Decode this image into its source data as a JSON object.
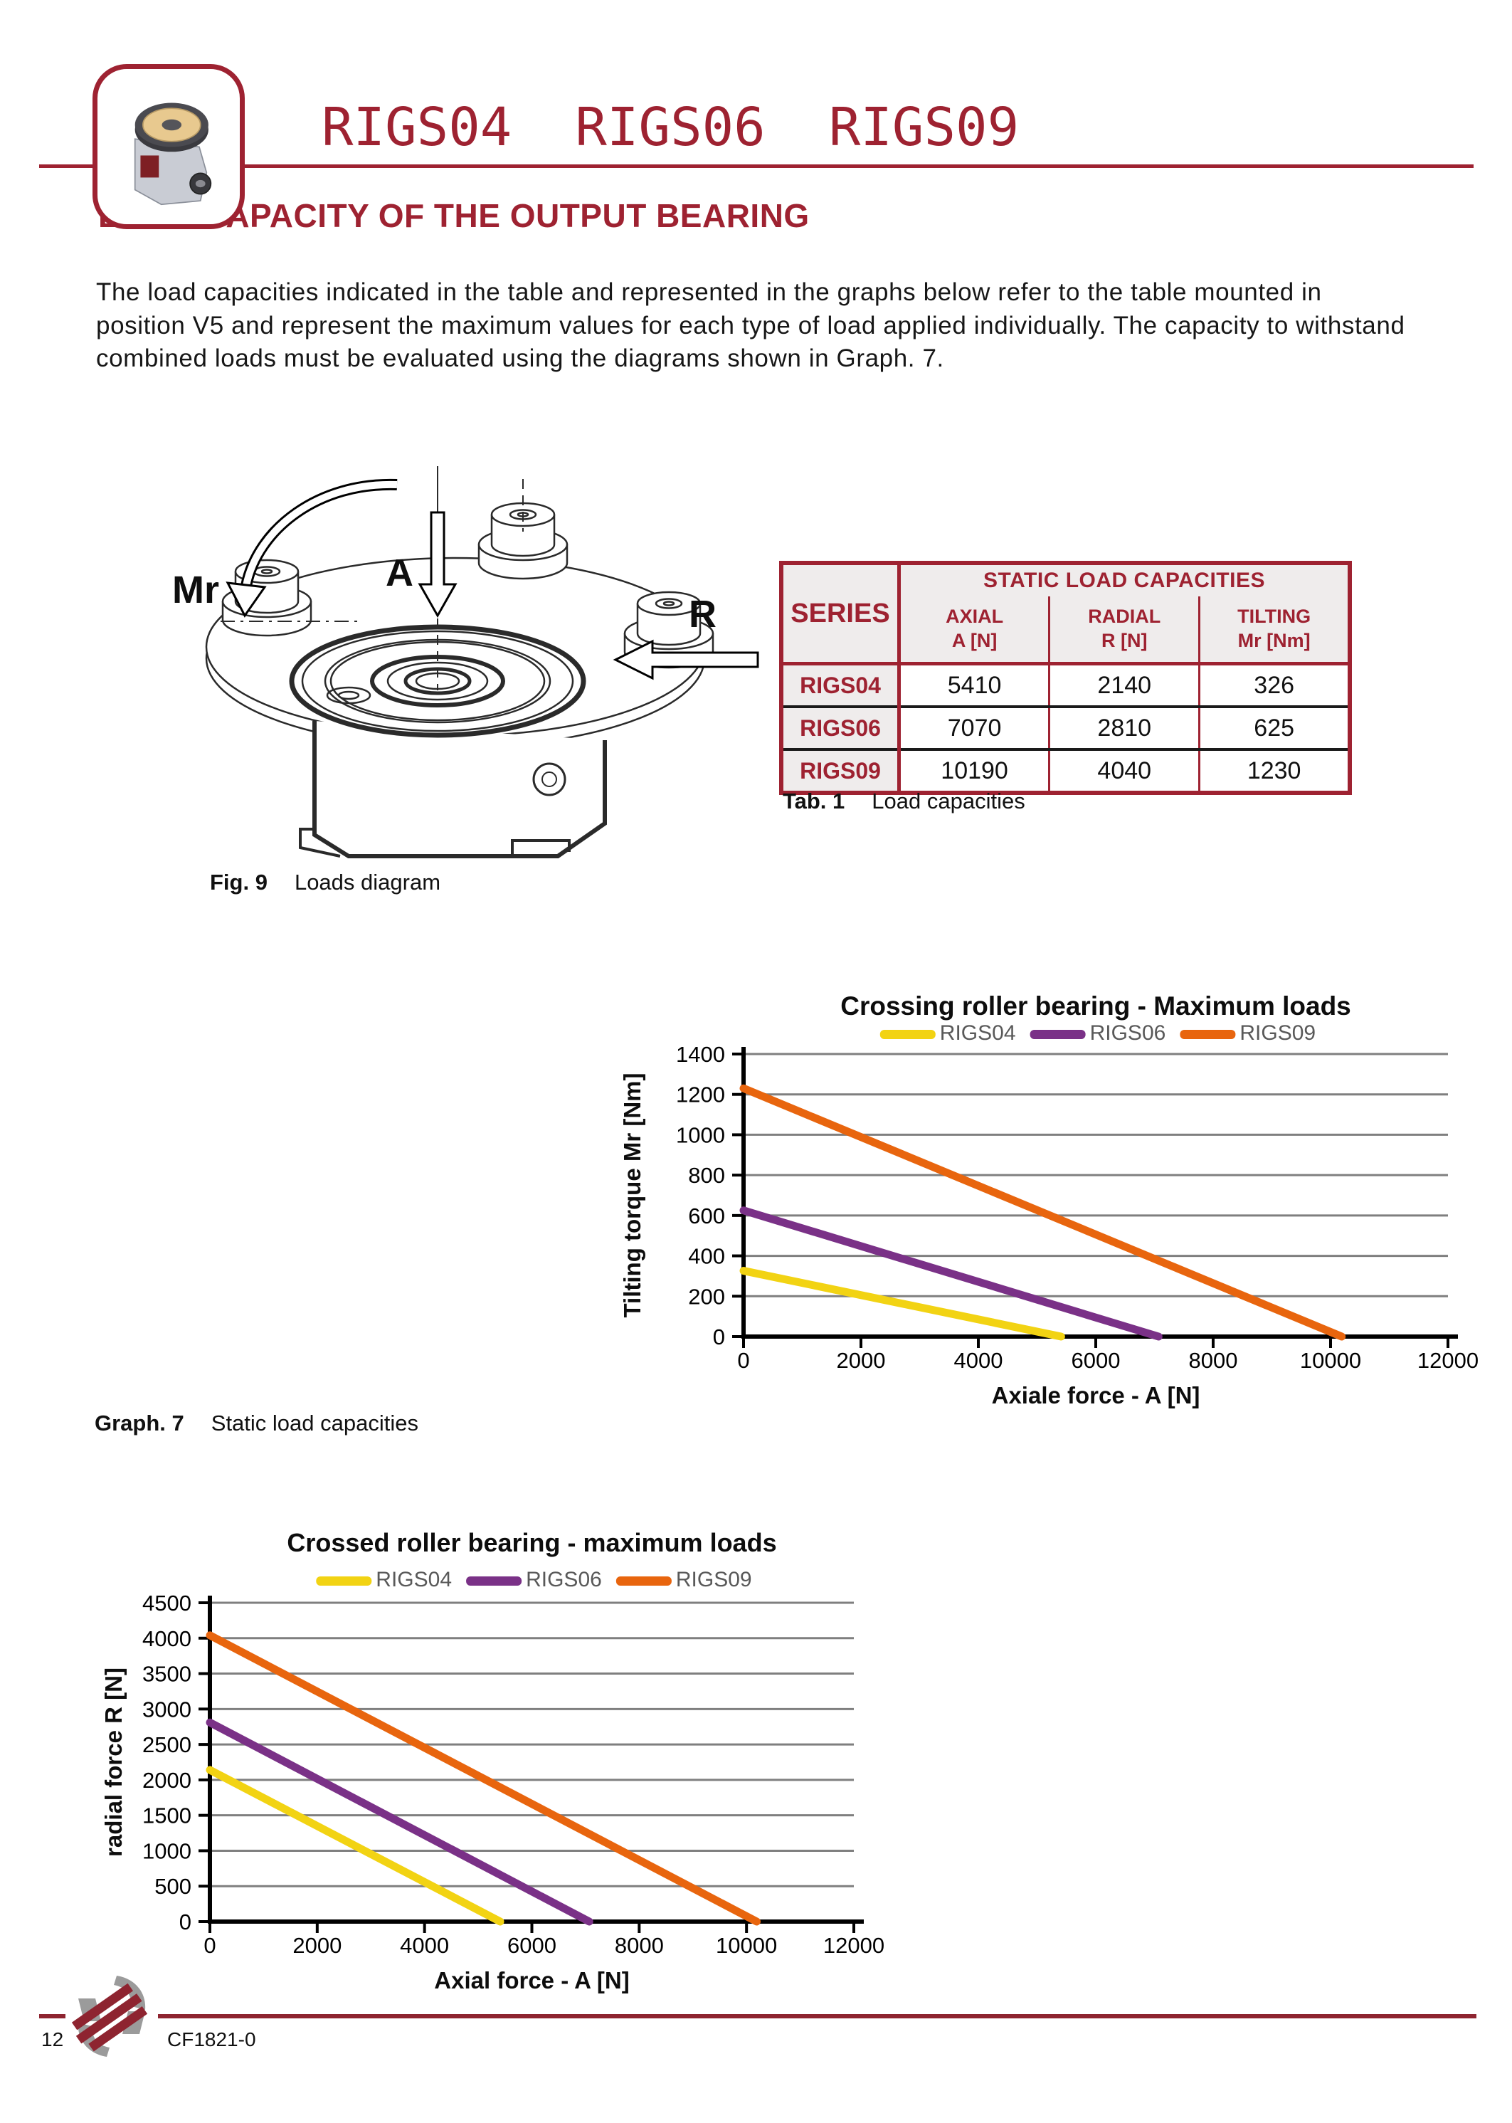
{
  "header": {
    "title": "RIGS04  RIGS06  RIGS09"
  },
  "section": {
    "heading": "LOAD CAPACITY OF THE OUTPUT BEARING",
    "paragraph": "The load capacities indicated in the table and represented in the graphs below refer to the table mounted in position V5 and represent the maximum values for each type of load applied individually. The capacity to withstand combined loads must be evaluated using the diagrams shown in Graph. 7."
  },
  "figure": {
    "labels": {
      "mr": "Mr",
      "a": "A",
      "r": "R"
    },
    "caption_label": "Fig. 9",
    "caption_text": "Loads diagram"
  },
  "table": {
    "group_header": "STATIC LOAD CAPACITIES",
    "corner_header": "SERIES",
    "col_headers": [
      {
        "line1": "AXIAL",
        "line2": "A [N]"
      },
      {
        "line1": "RADIAL",
        "line2": "R [N]"
      },
      {
        "line1": "TILTING",
        "line2": "Mr [Nm]"
      }
    ],
    "rows": [
      {
        "series": "RIGS04",
        "axial": "5410",
        "radial": "2140",
        "tilting": "326"
      },
      {
        "series": "RIGS06",
        "axial": "7070",
        "radial": "2810",
        "tilting": "625"
      },
      {
        "series": "RIGS09",
        "axial": "10190",
        "radial": "4040",
        "tilting": "1230"
      }
    ],
    "caption_label": "Tab. 1",
    "caption_text": "Load capacities"
  },
  "graph_caption": {
    "label": "Graph. 7",
    "text": "Static load capacities"
  },
  "chart_data": [
    {
      "type": "line",
      "title": "Crossing roller bearing  -  Maximum loads",
      "xlabel": "Axiale force   - A [N]",
      "ylabel": "Tilting torque Mr [Nm]",
      "xlim": [
        0,
        12000
      ],
      "xstep": 2000,
      "ylim": [
        0,
        1400
      ],
      "ystep": 200,
      "grid": "horizontal",
      "legend_position": "top",
      "gridline_color": "#7f7f7f",
      "legend_text_color": "#595959",
      "series": [
        {
          "name": "RIGS04",
          "color": "#F2D313",
          "points": [
            [
              0,
              326
            ],
            [
              5410,
              0
            ]
          ]
        },
        {
          "name": "RIGS06",
          "color": "#7A3187",
          "points": [
            [
              0,
              625
            ],
            [
              7070,
              0
            ]
          ]
        },
        {
          "name": "RIGS09",
          "color": "#E8650E",
          "points": [
            [
              0,
              1230
            ],
            [
              10190,
              0
            ]
          ]
        }
      ]
    },
    {
      "type": "line",
      "title": "Crossed roller bearing - maximum loads",
      "xlabel": "Axial force - A [N]",
      "ylabel": "radial force R [N]",
      "xlim": [
        0,
        12000
      ],
      "xstep": 2000,
      "ylim": [
        0,
        4500
      ],
      "ystep": 500,
      "grid": "horizontal",
      "legend_position": "top",
      "gridline_color": "#7f7f7f",
      "legend_text_color": "#595959",
      "series": [
        {
          "name": "RIGS04",
          "color": "#F2D313",
          "points": [
            [
              0,
              2140
            ],
            [
              5410,
              0
            ]
          ]
        },
        {
          "name": "RIGS06",
          "color": "#7A3187",
          "points": [
            [
              0,
              2810
            ],
            [
              7070,
              0
            ]
          ]
        },
        {
          "name": "RIGS09",
          "color": "#E8650E",
          "points": [
            [
              0,
              4040
            ],
            [
              10190,
              0
            ]
          ]
        }
      ]
    }
  ],
  "footer": {
    "page_number": "12",
    "doc_code": "CF1821-0"
  }
}
